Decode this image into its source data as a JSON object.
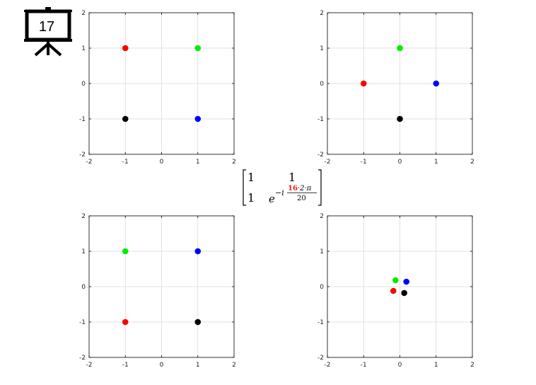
{
  "slide": {
    "number": "17",
    "icon": "presentation-board-icon"
  },
  "matrix": {
    "r1c1": "1",
    "r1c2": "1",
    "r2c1": "1",
    "base": "e",
    "exp_prefix": "−i",
    "exp_numerator_highlight": "16",
    "exp_numerator_rest": "·2·π",
    "exp_denominator": "20",
    "highlight_color": "#e8201c"
  },
  "colors": {
    "red": "#ff0000",
    "green": "#00ee00",
    "blue": "#0000ff",
    "black": "#000000",
    "grid": "#d8d8d8"
  },
  "chart_data": [
    {
      "type": "scatter",
      "xlim": [
        -2,
        2
      ],
      "ylim": [
        -2,
        2
      ],
      "xticks": [
        "-2",
        "-1",
        "0",
        "1",
        "2"
      ],
      "yticks": [
        "-2",
        "-1",
        "0",
        "1",
        "2"
      ],
      "grid": true,
      "points": [
        {
          "color": "red",
          "x": -1,
          "y": 1
        },
        {
          "color": "green",
          "x": 1,
          "y": 1
        },
        {
          "color": "black",
          "x": -1,
          "y": -1
        },
        {
          "color": "blue",
          "x": 1,
          "y": -1
        }
      ]
    },
    {
      "type": "scatter",
      "xlim": [
        -2,
        2
      ],
      "ylim": [
        -2,
        2
      ],
      "xticks": [
        "-2",
        "-1",
        "0",
        "1",
        "2"
      ],
      "yticks": [
        "-2",
        "-1",
        "0",
        "1",
        "2"
      ],
      "grid": true,
      "points": [
        {
          "color": "green",
          "x": 0,
          "y": 1
        },
        {
          "color": "red",
          "x": -1,
          "y": 0
        },
        {
          "color": "blue",
          "x": 1,
          "y": 0
        },
        {
          "color": "black",
          "x": 0,
          "y": -1
        }
      ]
    },
    {
      "type": "scatter",
      "xlim": [
        -2,
        2
      ],
      "ylim": [
        -2,
        2
      ],
      "xticks": [
        "-2",
        "-1",
        "0",
        "1",
        "2"
      ],
      "yticks": [
        "-2",
        "-1",
        "0",
        "1",
        "2"
      ],
      "grid": true,
      "points": [
        {
          "color": "green",
          "x": -1,
          "y": 1
        },
        {
          "color": "blue",
          "x": 1,
          "y": 1
        },
        {
          "color": "red",
          "x": -1,
          "y": -1
        },
        {
          "color": "black",
          "x": 1,
          "y": -1
        }
      ]
    },
    {
      "type": "scatter",
      "xlim": [
        -2,
        2
      ],
      "ylim": [
        -2,
        2
      ],
      "xticks": [
        "-2",
        "-1",
        "0",
        "1",
        "2"
      ],
      "yticks": [
        "-2",
        "-1",
        "0",
        "1",
        "2"
      ],
      "grid": true,
      "points": [
        {
          "color": "green",
          "x": -0.12,
          "y": 0.18
        },
        {
          "color": "blue",
          "x": 0.18,
          "y": 0.14
        },
        {
          "color": "red",
          "x": -0.18,
          "y": -0.12
        },
        {
          "color": "black",
          "x": 0.12,
          "y": -0.18
        }
      ]
    }
  ]
}
